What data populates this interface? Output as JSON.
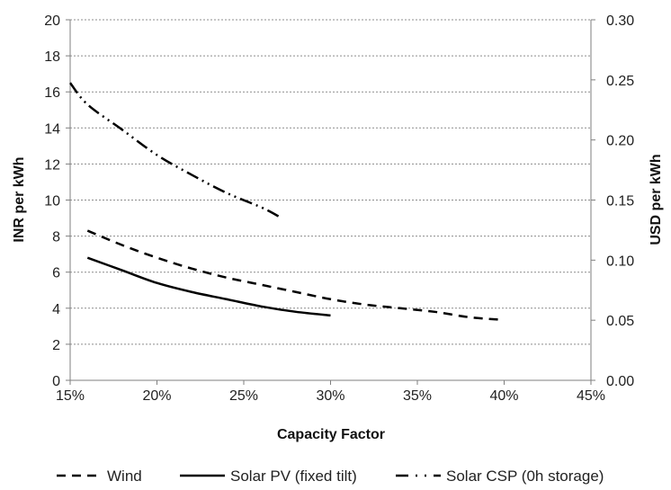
{
  "chart_data": {
    "type": "line",
    "title": "",
    "xlabel": "Capacity Factor",
    "ylabel": "INR per kWh",
    "y2label": "USD per kWh",
    "xlim": [
      0.15,
      0.45
    ],
    "ylim": [
      0,
      20
    ],
    "y2lim": [
      0,
      0.3
    ],
    "x_ticks": [
      "15%",
      "20%",
      "25%",
      "30%",
      "35%",
      "40%",
      "45%"
    ],
    "y_ticks": [
      "0",
      "2",
      "4",
      "6",
      "8",
      "10",
      "12",
      "14",
      "16",
      "18",
      "20"
    ],
    "y2_ticks": [
      "0.00",
      "0.05",
      "0.10",
      "0.15",
      "0.20",
      "0.25",
      "0.30"
    ],
    "grid": "horizontal-dotted",
    "legend_position": "bottom",
    "series": [
      {
        "name": "Wind",
        "style": "dashed",
        "color": "#000000",
        "x": [
          0.16,
          0.18,
          0.2,
          0.22,
          0.24,
          0.26,
          0.28,
          0.3,
          0.32,
          0.34,
          0.36,
          0.38,
          0.4
        ],
        "values": [
          8.3,
          7.5,
          6.8,
          6.2,
          5.7,
          5.3,
          4.9,
          4.5,
          4.2,
          4.0,
          3.8,
          3.5,
          3.35
        ]
      },
      {
        "name": "Solar PV (fixed tilt)",
        "style": "solid",
        "color": "#000000",
        "x": [
          0.16,
          0.18,
          0.2,
          0.22,
          0.24,
          0.26,
          0.28,
          0.3
        ],
        "values": [
          6.8,
          6.1,
          5.4,
          4.9,
          4.5,
          4.1,
          3.8,
          3.6
        ]
      },
      {
        "name": "Solar CSP (0h storage)",
        "style": "dash-dot-dot",
        "color": "#000000",
        "x": [
          0.15,
          0.16,
          0.18,
          0.2,
          0.22,
          0.24,
          0.26,
          0.27
        ],
        "values": [
          16.5,
          15.3,
          13.9,
          12.5,
          11.4,
          10.4,
          9.6,
          9.1
        ]
      }
    ]
  }
}
